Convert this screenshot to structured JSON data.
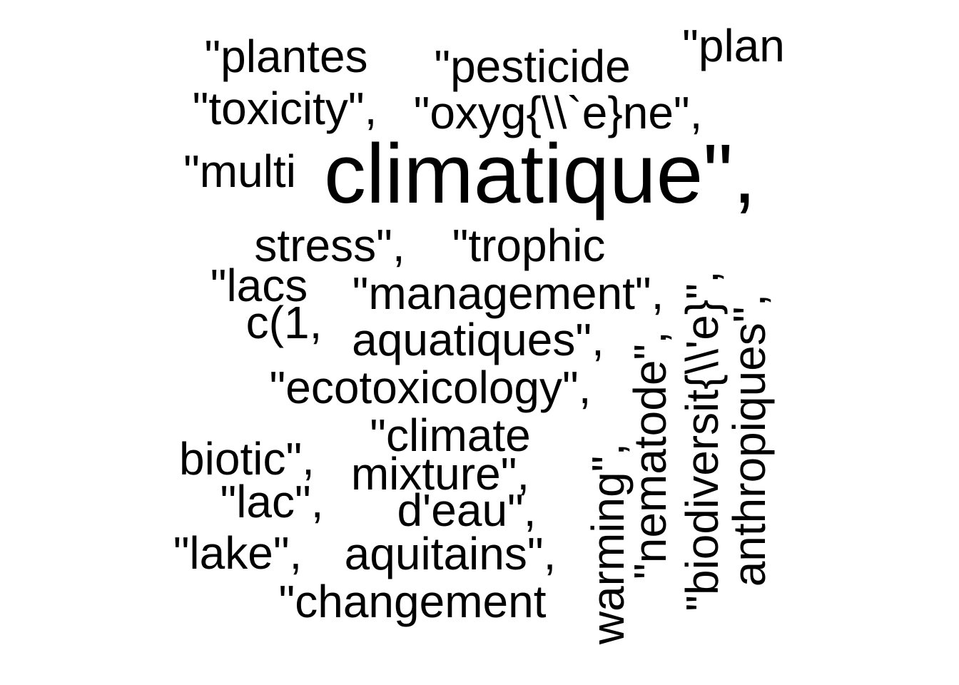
{
  "words": {
    "plantes": "\"plantes",
    "pesticide": "\"pesticide",
    "plan": "\"plan",
    "toxicity": "\"toxicity\",",
    "oxygene": "\"oxyg{\\\\`e}ne\",",
    "multi": "\"multi",
    "climatique": "climatique\",",
    "stress": "stress\",",
    "trophic": "\"trophic",
    "lacs": "\"lacs",
    "management": "\"management\",",
    "c1": "c(1,",
    "aquatiques": "aquatiques\",",
    "ecotoxicology": "\"ecotoxicology\",",
    "climate": "\"climate",
    "biotic": "biotic\",",
    "mixture": "mixture\",",
    "lac": "\"lac\",",
    "deau": "d'eau\",",
    "lake": "\"lake\",",
    "aquitains": "aquitains\",",
    "changement": "\"changement",
    "warming": "warming\",",
    "nematode": "\"nematode\",",
    "biodiversite": "\"biodiversit{\\\\'e}\",",
    "anthropiques": "anthropiques\","
  },
  "colors": {
    "text": "#000000",
    "background": "#ffffff"
  }
}
